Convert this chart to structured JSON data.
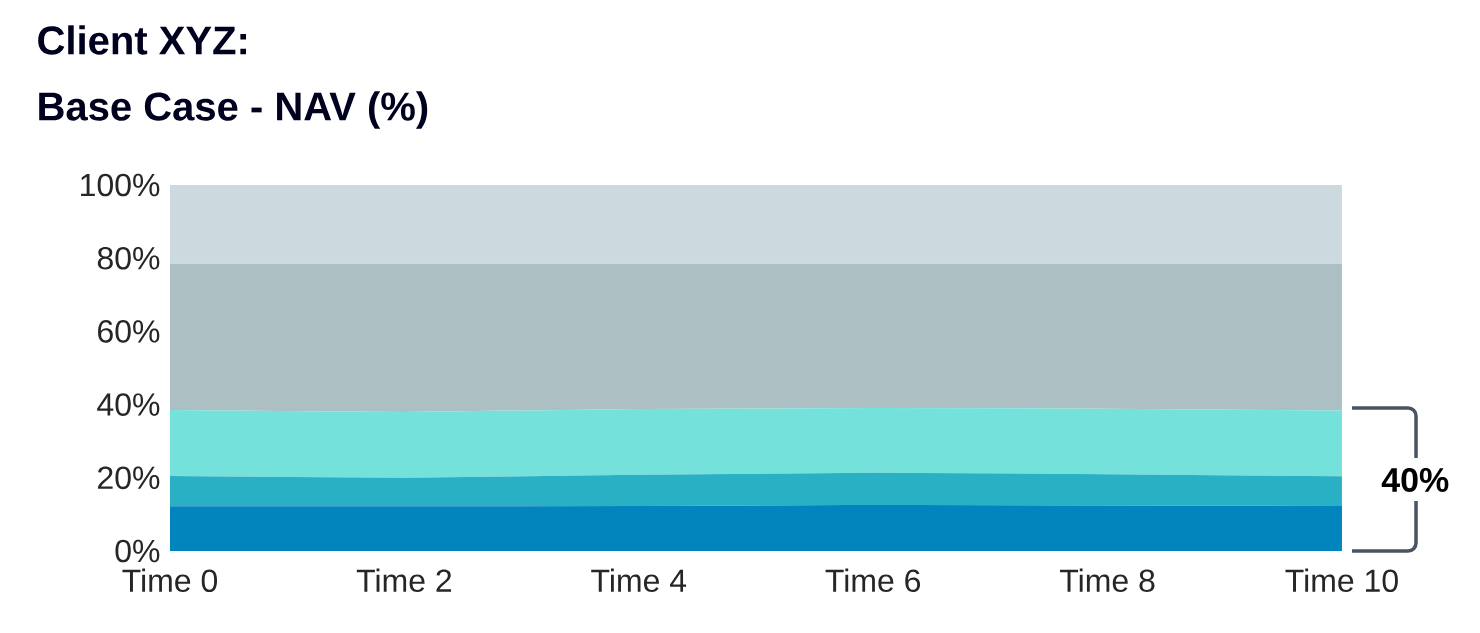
{
  "chart_data": {
    "type": "area",
    "title": "Client XYZ:",
    "subtitle": "Base Case - NAV (%)",
    "categories": [
      "Time 0",
      "Time 2",
      "Time 4",
      "Time 6",
      "Time 8",
      "Time 10"
    ],
    "stacked": true,
    "series": [
      {
        "color": "#0284bc",
        "values": [
          12.2,
          12.2,
          12.3,
          12.6,
          12.4,
          12.3
        ]
      },
      {
        "color": "#2ab0c4",
        "values": [
          8.3,
          7.8,
          8.5,
          8.8,
          8.6,
          8.1
        ]
      },
      {
        "color": "#74e2da",
        "values": [
          18.0,
          18.0,
          18.0,
          17.7,
          17.9,
          18.0
        ]
      },
      {
        "color": "#acbfc3",
        "values": [
          40.0,
          40.5,
          39.7,
          39.4,
          39.6,
          40.1
        ]
      },
      {
        "color": "#ccdae0",
        "values": [
          21.5,
          21.5,
          21.5,
          21.5,
          21.5,
          21.5
        ]
      }
    ],
    "ylim": [
      0,
      100
    ],
    "yticks": [
      {
        "value": 0,
        "label": "0%"
      },
      {
        "value": 20,
        "label": "20%"
      },
      {
        "value": 40,
        "label": "40%"
      },
      {
        "value": 60,
        "label": "60%"
      },
      {
        "value": 80,
        "label": "80%"
      },
      {
        "value": 100,
        "label": "100%"
      }
    ],
    "annotations": [
      "40%"
    ]
  }
}
